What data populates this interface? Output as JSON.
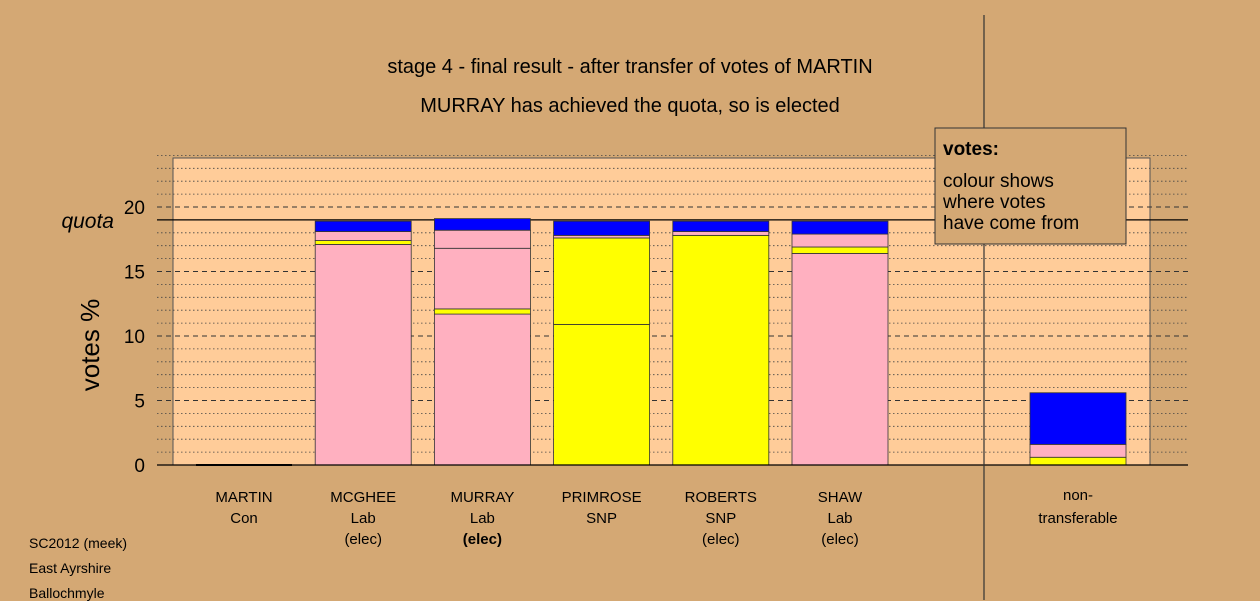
{
  "chart_data": {
    "type": "bar",
    "stacked": true,
    "title": "stage 4 - final result - after transfer of votes of MARTIN",
    "subtitle": "MURRAY has achieved the quota, so is elected",
    "ylabel": "votes %",
    "ylim": [
      0,
      24
    ],
    "yticks": [
      0,
      5,
      10,
      15,
      20
    ],
    "quota": {
      "label": "quota",
      "value": 19.0
    },
    "grid": true,
    "candidates": [
      {
        "name": "MARTIN",
        "party": "Con",
        "status": "",
        "status_bold": false,
        "segments": []
      },
      {
        "name": "MCGHEE",
        "party": "Lab",
        "status": "(elec)",
        "status_bold": false,
        "segments": [
          {
            "color": "#ffb0c0",
            "value": 17.1
          },
          {
            "color": "#ffff00",
            "value": 0.3
          },
          {
            "color": "#ffb0c0",
            "value": 0.7
          },
          {
            "color": "#0000ff",
            "value": 0.8
          }
        ]
      },
      {
        "name": "MURRAY",
        "party": "Lab",
        "status": "(elec)",
        "status_bold": true,
        "segments": [
          {
            "color": "#ffb0c0",
            "value": 11.7
          },
          {
            "color": "#ffff00",
            "value": 0.4
          },
          {
            "color": "#ffb0c0",
            "value": 4.7
          },
          {
            "color": "#ffb0c0",
            "value": 1.4
          },
          {
            "color": "#0000ff",
            "value": 0.9
          }
        ]
      },
      {
        "name": "PRIMROSE",
        "party": "SNP",
        "status": "",
        "status_bold": false,
        "segments": [
          {
            "color": "#ffff00",
            "value": 10.9
          },
          {
            "color": "#ffff00",
            "value": 6.7
          },
          {
            "color": "#ffb0c0",
            "value": 0.2
          },
          {
            "color": "#0000ff",
            "value": 1.1
          }
        ]
      },
      {
        "name": "ROBERTS",
        "party": "SNP",
        "status": "(elec)",
        "status_bold": false,
        "segments": [
          {
            "color": "#ffff00",
            "value": 17.8
          },
          {
            "color": "#ffb0c0",
            "value": 0.3
          },
          {
            "color": "#0000ff",
            "value": 0.8
          }
        ]
      },
      {
        "name": "SHAW",
        "party": "Lab",
        "status": "(elec)",
        "status_bold": false,
        "segments": [
          {
            "color": "#ffb0c0",
            "value": 16.4
          },
          {
            "color": "#ffff00",
            "value": 0.5
          },
          {
            "color": "#ffb0c0",
            "value": 1.0
          },
          {
            "color": "#0000ff",
            "value": 1.0
          }
        ]
      }
    ],
    "nontransferable": {
      "label_line1": "non-",
      "label_line2": "transferable",
      "segments": [
        {
          "color": "#ffff00",
          "value": 0.6
        },
        {
          "color": "#ffb0c0",
          "value": 1.0
        },
        {
          "color": "#0000ff",
          "value": 4.0
        }
      ]
    },
    "legend": {
      "placement": "top-right",
      "title": "votes:",
      "lines": [
        "colour shows",
        "where votes",
        "have come from"
      ]
    }
  },
  "source": {
    "line1": "SC2012 (meek)",
    "line2": "East Ayrshire",
    "line3": "Ballochmyle"
  },
  "colors": {
    "background": "#d4a874",
    "plot_area": "#ffcc99",
    "pink": "#ffb0c0",
    "yellow": "#ffff00",
    "blue": "#0000ff"
  }
}
